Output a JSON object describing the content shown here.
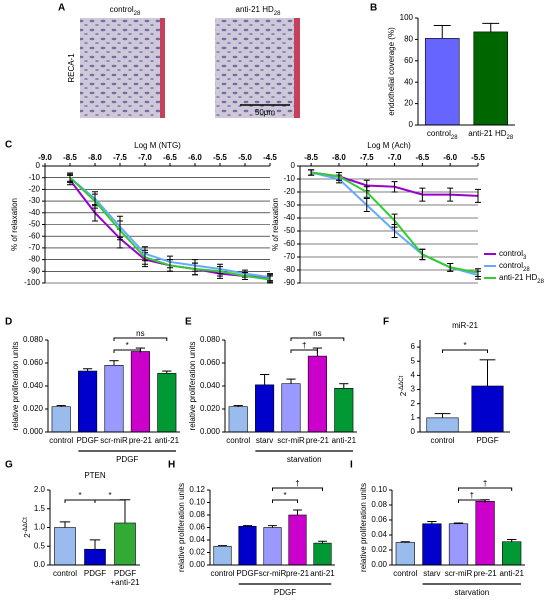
{
  "panel_a": {
    "panel": "A",
    "images": [
      {
        "label": {
          "text": "control",
          "sub": "28"
        }
      },
      {
        "label": {
          "text": "anti-21 HD",
          "sub": "28"
        }
      }
    ],
    "stain": "RECA-1",
    "scale_bar": "50μm"
  },
  "chart_data": [
    {
      "type": "bar",
      "panel": "B",
      "ylabel": "endothelial coverage (%)",
      "categories": [
        {
          "text": "control",
          "sub": "28"
        },
        {
          "text": "anti-21 HD",
          "sub": "28"
        }
      ],
      "values": [
        81,
        87
      ],
      "errors": [
        12,
        8
      ],
      "colors": [
        "#6666ff",
        "#006600"
      ],
      "ylim": [
        0,
        100
      ],
      "yticks": [
        0,
        20,
        40,
        60,
        80,
        100
      ]
    },
    {
      "type": "line",
      "panel": "C",
      "xlabel": "Log M (NTG)",
      "ylabel": "% of relaxation",
      "x": [
        -8.5,
        -8,
        -7.5,
        -7,
        -6.5,
        -6,
        -5.5,
        -5,
        -4.5
      ],
      "xlim": [
        -9,
        -4.5
      ],
      "xticks": [
        {
          "value": -9,
          "label": "-9.0"
        },
        -8.5,
        {
          "value": -8,
          "label": "-8.0"
        },
        -7.5,
        {
          "value": -7,
          "label": "-7.0"
        },
        -6.5,
        {
          "value": -6,
          "label": "-6.0"
        },
        -5.5,
        {
          "value": -5,
          "label": "-5.0"
        },
        -4.5
      ],
      "ylim": [
        -100,
        0
      ],
      "yticks": [
        0,
        -10,
        -20,
        -30,
        -40,
        -50,
        -60,
        -70,
        -80,
        -90,
        -100
      ],
      "grid": true,
      "series": [
        {
          "color": "#9900cc",
          "values": [
            -12,
            -40,
            -62,
            -80,
            -85,
            -88,
            -92,
            -94,
            -96
          ],
          "errors": [
            4,
            7,
            8,
            6,
            5,
            5,
            4,
            3,
            3
          ]
        },
        {
          "color": "#66aaff",
          "values": [
            -10,
            -28,
            -52,
            -75,
            -82,
            -85,
            -88,
            -92,
            -95
          ],
          "errors": [
            4,
            6,
            9,
            6,
            5,
            5,
            4,
            3,
            3
          ]
        },
        {
          "color": "#33cc33",
          "values": [
            -10,
            -30,
            -55,
            -78,
            -85,
            -88,
            -90,
            -94,
            -97
          ],
          "errors": [
            3,
            6,
            8,
            6,
            5,
            5,
            4,
            3,
            3
          ]
        }
      ]
    },
    {
      "type": "line",
      "xlabel": "Log M (Ach)",
      "ylabel": "% of relaxation",
      "x": [
        -8.5,
        -8,
        -7.5,
        -7,
        -6.5,
        -6,
        -5.5
      ],
      "xlim": [
        -8.7,
        -5.5
      ],
      "xticks": [
        -8.5,
        {
          "value": -8,
          "label": "-8.0"
        },
        -7.5,
        {
          "value": -7,
          "label": "-7.0"
        },
        -6.5,
        {
          "value": -6,
          "label": "-6.0"
        },
        -5.5
      ],
      "ylim": [
        -90,
        0
      ],
      "yticks": [
        0,
        -10,
        -20,
        -30,
        -40,
        -50,
        -60,
        -70,
        -80,
        -90
      ],
      "grid": true,
      "legend": "right",
      "series": [
        {
          "name": {
            "text": "control",
            "sub": "3"
          },
          "color": "#9900cc",
          "values": [
            -5,
            -8,
            -15,
            -16,
            -22,
            -22,
            -23
          ],
          "errors": [
            2,
            3,
            4,
            4,
            5,
            5,
            5
          ]
        },
        {
          "name": {
            "text": "control",
            "sub": "28"
          },
          "color": "#66aaff",
          "values": [
            -5,
            -10,
            -30,
            -50,
            -68,
            -78,
            -84
          ],
          "errors": [
            2,
            3,
            5,
            5,
            4,
            3,
            3
          ]
        },
        {
          "name": {
            "text": "anti-21 HD",
            "sub": "28"
          },
          "color": "#33cc33",
          "values": [
            -5,
            -8,
            -20,
            -42,
            -68,
            -78,
            -82
          ],
          "errors": [
            2,
            3,
            4,
            5,
            4,
            3,
            3
          ]
        }
      ]
    },
    {
      "type": "bar",
      "panel": "D",
      "ylabel": "relative proliferation units",
      "categories": [
        "control",
        "PDGF",
        "scr-miR",
        "pre-21",
        "anti-21"
      ],
      "values": [
        0.022,
        0.053,
        0.058,
        0.07,
        0.051
      ],
      "errors": [
        0.001,
        0.002,
        0.004,
        0.003,
        0.002
      ],
      "colors": [
        "#99bbee",
        "#0000cc",
        "#9999ff",
        "#cc00cc",
        "#009933"
      ],
      "ylim": [
        0,
        0.08
      ],
      "yticks": [
        {
          "value": 0,
          "label": "0.000"
        },
        {
          "value": 0.02,
          "label": "0.020"
        },
        {
          "value": 0.04,
          "label": "0.040"
        },
        {
          "value": 0.06,
          "label": "0.060"
        },
        {
          "value": 0.08,
          "label": "0.080"
        }
      ],
      "comparisons": [
        {
          "pair": [
            2,
            3
          ],
          "label": "*"
        },
        {
          "pair": [
            2,
            4
          ],
          "label": "ns"
        }
      ],
      "group": {
        "label": "PDGF",
        "span": [
          1,
          4
        ]
      }
    },
    {
      "type": "bar",
      "panel": "E",
      "ylabel": "relative proliferation units",
      "categories": [
        "control",
        "starv",
        "scr-miR",
        "pre-21",
        "anti-21"
      ],
      "values": [
        0.022,
        0.041,
        0.042,
        0.066,
        0.038
      ],
      "errors": [
        0.001,
        0.009,
        0.004,
        0.007,
        0.004
      ],
      "colors": [
        "#99bbee",
        "#0000cc",
        "#9999ff",
        "#cc00cc",
        "#009933"
      ],
      "ylim": [
        0,
        0.08
      ],
      "yticks": [
        {
          "value": 0,
          "label": "0.000"
        },
        {
          "value": 0.02,
          "label": "0.020"
        },
        {
          "value": 0.04,
          "label": "0.040"
        },
        {
          "value": 0.06,
          "label": "0.060"
        },
        {
          "value": 0.08,
          "label": "0.080"
        }
      ],
      "comparisons": [
        {
          "pair": [
            2,
            3
          ],
          "label": "†"
        },
        {
          "pair": [
            2,
            4
          ],
          "label": "ns"
        }
      ],
      "group": {
        "label": "starvation",
        "span": [
          1,
          4
        ]
      }
    },
    {
      "type": "bar",
      "panel": "F",
      "title": "miR-21",
      "ylabel": {
        "text": "2",
        "sup": "-ΔΔCt"
      },
      "categories": [
        "control",
        "PDGF"
      ],
      "values": [
        1.0,
        3.25
      ],
      "errors": [
        0.3,
        1.85
      ],
      "colors": [
        "#99bbee",
        "#0000cc"
      ],
      "ylim": [
        0,
        6.5
      ],
      "yticks": [
        0,
        1,
        2,
        3,
        4,
        5,
        6
      ],
      "comparisons": [
        {
          "pair": [
            0,
            1
          ],
          "label": "*"
        }
      ]
    },
    {
      "type": "bar",
      "panel": "G",
      "title": "PTEN",
      "ylabel": {
        "text": "2",
        "sup": "-ΔΔCt"
      },
      "categories": [
        "control",
        "PDGF",
        [
          "PDGF",
          "+anti-21"
        ]
      ],
      "values": [
        1.0,
        0.42,
        1.12
      ],
      "errors": [
        0.15,
        0.25,
        0.62
      ],
      "colors": [
        "#99bbee",
        "#0000cc",
        "#33aa33"
      ],
      "ylim": [
        0,
        2
      ],
      "yticks": [
        {
          "value": 0,
          "label": "0.0"
        },
        {
          "value": 0.5,
          "label": "0.5"
        },
        {
          "value": 1,
          "label": "1.0"
        },
        {
          "value": 1.5,
          "label": "1.5"
        },
        {
          "value": 2,
          "label": "2.0"
        }
      ],
      "comparisons": [
        {
          "pair": [
            0,
            1
          ],
          "label": "*"
        },
        {
          "pair": [
            1,
            2
          ],
          "label": "*"
        }
      ]
    },
    {
      "type": "bar",
      "panel": "H",
      "ylabel": "relative proliferation units",
      "categories": [
        "control",
        "PDGF",
        "scr-miR",
        "pre-21",
        "anti-21"
      ],
      "values": [
        0.03,
        0.062,
        0.06,
        0.08,
        0.035
      ],
      "errors": [
        0.001,
        0.001,
        0.003,
        0.008,
        0.003
      ],
      "colors": [
        "#99bbee",
        "#0000cc",
        "#9999ff",
        "#cc00cc",
        "#009933"
      ],
      "ylim": [
        0,
        0.12
      ],
      "yticks": [
        {
          "value": 0,
          "label": "0.00"
        },
        {
          "value": 0.02,
          "label": "0.02"
        },
        {
          "value": 0.04,
          "label": "0.04"
        },
        {
          "value": 0.06,
          "label": "0.06"
        },
        {
          "value": 0.08,
          "label": "0.08"
        },
        {
          "value": 0.1,
          "label": "0.10"
        },
        {
          "value": 0.12,
          "label": "0.12"
        }
      ],
      "comparisons": [
        {
          "pair": [
            2,
            3
          ],
          "label": "*"
        },
        {
          "pair": [
            2,
            4
          ],
          "label": "†"
        }
      ],
      "group": {
        "label": "PDGF",
        "span": [
          1,
          4
        ]
      }
    },
    {
      "type": "bar",
      "panel": "I",
      "ylabel": "relative proliferation units",
      "categories": [
        "control",
        "starv",
        "scr-miR",
        "pre-21",
        "anti-21"
      ],
      "values": [
        0.03,
        0.055,
        0.055,
        0.085,
        0.031
      ],
      "errors": [
        0.001,
        0.003,
        0.001,
        0.002,
        0.003
      ],
      "colors": [
        "#99bbee",
        "#0000cc",
        "#9999ff",
        "#cc00cc",
        "#009933"
      ],
      "ylim": [
        0,
        0.1
      ],
      "yticks": [
        {
          "value": 0,
          "label": "0.00"
        },
        {
          "value": 0.02,
          "label": "0.02"
        },
        {
          "value": 0.04,
          "label": "0.04"
        },
        {
          "value": 0.06,
          "label": "0.06"
        },
        {
          "value": 0.08,
          "label": "0.08"
        },
        {
          "value": 0.1,
          "label": "0.10"
        }
      ],
      "comparisons": [
        {
          "pair": [
            2,
            3
          ],
          "label": "†"
        },
        {
          "pair": [
            2,
            4
          ],
          "label": "†"
        }
      ],
      "group": {
        "label": "starvation",
        "span": [
          1,
          4
        ]
      }
    }
  ]
}
